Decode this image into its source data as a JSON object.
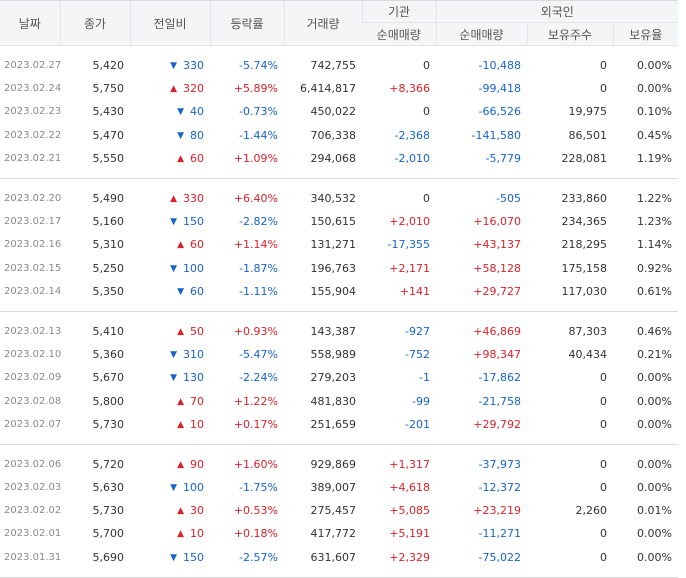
{
  "header": {
    "date": "날짜",
    "close": "종가",
    "change": "전일비",
    "rate": "등락률",
    "volume": "거래량",
    "institution": "기관",
    "foreign": "외국인",
    "inst_net": "순매매량",
    "foreign_net": "순매매량",
    "foreign_shares": "보유주수",
    "foreign_ratio": "보유율"
  },
  "colors": {
    "up": "#d8232a",
    "down": "#1764c7"
  },
  "groups": [
    [
      {
        "date": "2023.02.27",
        "close": "5,420",
        "dir": "down",
        "change": "330",
        "rate": "-5.74%",
        "volume": "742,755",
        "inst": "0",
        "foreign_net": "-10,488",
        "shares": "0",
        "ratio": "0.00%"
      },
      {
        "date": "2023.02.24",
        "close": "5,750",
        "dir": "up",
        "change": "320",
        "rate": "+5.89%",
        "volume": "6,414,817",
        "inst": "+8,366",
        "foreign_net": "-99,418",
        "shares": "0",
        "ratio": "0.00%"
      },
      {
        "date": "2023.02.23",
        "close": "5,430",
        "dir": "down",
        "change": "40",
        "rate": "-0.73%",
        "volume": "450,022",
        "inst": "0",
        "foreign_net": "-66,526",
        "shares": "19,975",
        "ratio": "0.10%"
      },
      {
        "date": "2023.02.22",
        "close": "5,470",
        "dir": "down",
        "change": "80",
        "rate": "-1.44%",
        "volume": "706,338",
        "inst": "-2,368",
        "foreign_net": "-141,580",
        "shares": "86,501",
        "ratio": "0.45%"
      },
      {
        "date": "2023.02.21",
        "close": "5,550",
        "dir": "up",
        "change": "60",
        "rate": "+1.09%",
        "volume": "294,068",
        "inst": "-2,010",
        "foreign_net": "-5,779",
        "shares": "228,081",
        "ratio": "1.19%"
      }
    ],
    [
      {
        "date": "2023.02.20",
        "close": "5,490",
        "dir": "up",
        "change": "330",
        "rate": "+6.40%",
        "volume": "340,532",
        "inst": "0",
        "foreign_net": "-505",
        "shares": "233,860",
        "ratio": "1.22%"
      },
      {
        "date": "2023.02.17",
        "close": "5,160",
        "dir": "down",
        "change": "150",
        "rate": "-2.82%",
        "volume": "150,615",
        "inst": "+2,010",
        "foreign_net": "+16,070",
        "shares": "234,365",
        "ratio": "1.23%"
      },
      {
        "date": "2023.02.16",
        "close": "5,310",
        "dir": "up",
        "change": "60",
        "rate": "+1.14%",
        "volume": "131,271",
        "inst": "-17,355",
        "foreign_net": "+43,137",
        "shares": "218,295",
        "ratio": "1.14%"
      },
      {
        "date": "2023.02.15",
        "close": "5,250",
        "dir": "down",
        "change": "100",
        "rate": "-1.87%",
        "volume": "196,763",
        "inst": "+2,171",
        "foreign_net": "+58,128",
        "shares": "175,158",
        "ratio": "0.92%"
      },
      {
        "date": "2023.02.14",
        "close": "5,350",
        "dir": "down",
        "change": "60",
        "rate": "-1.11%",
        "volume": "155,904",
        "inst": "+141",
        "foreign_net": "+29,727",
        "shares": "117,030",
        "ratio": "0.61%"
      }
    ],
    [
      {
        "date": "2023.02.13",
        "close": "5,410",
        "dir": "up",
        "change": "50",
        "rate": "+0.93%",
        "volume": "143,387",
        "inst": "-927",
        "foreign_net": "+46,869",
        "shares": "87,303",
        "ratio": "0.46%"
      },
      {
        "date": "2023.02.10",
        "close": "5,360",
        "dir": "down",
        "change": "310",
        "rate": "-5.47%",
        "volume": "558,989",
        "inst": "-752",
        "foreign_net": "+98,347",
        "shares": "40,434",
        "ratio": "0.21%"
      },
      {
        "date": "2023.02.09",
        "close": "5,670",
        "dir": "down",
        "change": "130",
        "rate": "-2.24%",
        "volume": "279,203",
        "inst": "-1",
        "foreign_net": "-17,862",
        "shares": "0",
        "ratio": "0.00%"
      },
      {
        "date": "2023.02.08",
        "close": "5,800",
        "dir": "up",
        "change": "70",
        "rate": "+1.22%",
        "volume": "481,830",
        "inst": "-99",
        "foreign_net": "-21,758",
        "shares": "0",
        "ratio": "0.00%"
      },
      {
        "date": "2023.02.07",
        "close": "5,730",
        "dir": "up",
        "change": "10",
        "rate": "+0.17%",
        "volume": "251,659",
        "inst": "-201",
        "foreign_net": "+29,792",
        "shares": "0",
        "ratio": "0.00%"
      }
    ],
    [
      {
        "date": "2023.02.06",
        "close": "5,720",
        "dir": "up",
        "change": "90",
        "rate": "+1.60%",
        "volume": "929,869",
        "inst": "+1,317",
        "foreign_net": "-37,973",
        "shares": "0",
        "ratio": "0.00%"
      },
      {
        "date": "2023.02.03",
        "close": "5,630",
        "dir": "down",
        "change": "100",
        "rate": "-1.75%",
        "volume": "389,007",
        "inst": "+4,618",
        "foreign_net": "-12,372",
        "shares": "0",
        "ratio": "0.00%"
      },
      {
        "date": "2023.02.02",
        "close": "5,730",
        "dir": "up",
        "change": "30",
        "rate": "+0.53%",
        "volume": "275,457",
        "inst": "+5,085",
        "foreign_net": "+23,219",
        "shares": "2,260",
        "ratio": "0.01%"
      },
      {
        "date": "2023.02.01",
        "close": "5,700",
        "dir": "up",
        "change": "10",
        "rate": "+0.18%",
        "volume": "417,772",
        "inst": "+5,191",
        "foreign_net": "-11,271",
        "shares": "0",
        "ratio": "0.00%"
      },
      {
        "date": "2023.01.31",
        "close": "5,690",
        "dir": "down",
        "change": "150",
        "rate": "-2.57%",
        "volume": "631,607",
        "inst": "+2,329",
        "foreign_net": "-75,022",
        "shares": "0",
        "ratio": "0.00%"
      }
    ]
  ]
}
